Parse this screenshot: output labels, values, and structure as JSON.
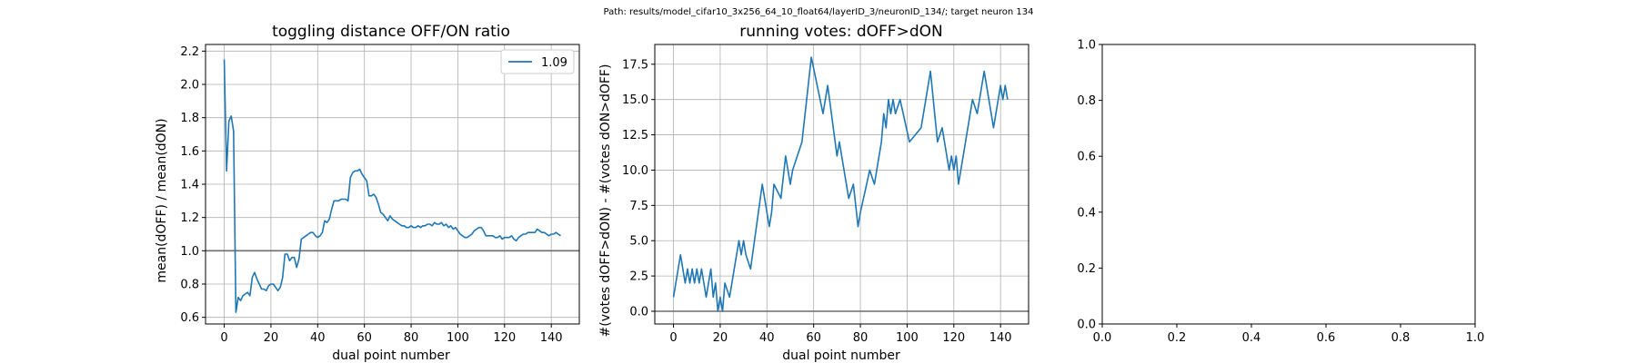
{
  "suptitle": "Path: results/model_cifar10_3x256_64_10_float64/layerID_3/neuronID_134/; target neuron 134",
  "chart_data": [
    {
      "type": "line",
      "title": "toggling distance OFF/ON ratio",
      "xlabel": "dual point number",
      "ylabel": "mean(dOFF) / mean(dON)",
      "xlim": [
        -8,
        152
      ],
      "ylim": [
        0.56,
        2.24
      ],
      "xticks": [
        0,
        20,
        40,
        60,
        80,
        100,
        120,
        140
      ],
      "yticks": [
        0.6,
        0.8,
        1.0,
        1.2,
        1.4,
        1.6,
        1.8,
        2.0,
        2.2
      ],
      "ytick_labels": [
        "0.6",
        "0.8",
        "1.0",
        "1.2",
        "1.4",
        "1.6",
        "1.8",
        "2.0",
        "2.2"
      ],
      "grid": true,
      "legend": "top-right",
      "reference_line": 1.0,
      "series": [
        {
          "name": "1.09",
          "color": "#1f77b4",
          "x": [
            0,
            1,
            2,
            3,
            4,
            5,
            6,
            7,
            8,
            9,
            10,
            11,
            12,
            13,
            14,
            15,
            16,
            17,
            18,
            19,
            20,
            21,
            22,
            23,
            24,
            25,
            26,
            27,
            28,
            29,
            30,
            31,
            32,
            33,
            34,
            35,
            36,
            37,
            38,
            39,
            40,
            41,
            42,
            43,
            44,
            45,
            46,
            47,
            48,
            49,
            50,
            51,
            52,
            53,
            54,
            55,
            56,
            57,
            58,
            59,
            60,
            61,
            62,
            63,
            64,
            65,
            66,
            67,
            68,
            69,
            70,
            71,
            72,
            73,
            74,
            75,
            76,
            77,
            78,
            79,
            80,
            81,
            82,
            83,
            84,
            85,
            86,
            87,
            88,
            89,
            90,
            91,
            92,
            93,
            94,
            95,
            96,
            97,
            98,
            99,
            100,
            101,
            102,
            103,
            104,
            105,
            106,
            107,
            108,
            109,
            110,
            111,
            112,
            113,
            114,
            115,
            116,
            117,
            118,
            119,
            120,
            121,
            122,
            123,
            124,
            125,
            126,
            127,
            128,
            129,
            130,
            131,
            132,
            133,
            134,
            135,
            136,
            137,
            138,
            139,
            140,
            141,
            142,
            143,
            144
          ],
          "y": [
            2.15,
            1.48,
            1.78,
            1.81,
            1.72,
            0.63,
            0.72,
            0.7,
            0.73,
            0.74,
            0.75,
            0.73,
            0.84,
            0.87,
            0.83,
            0.8,
            0.77,
            0.77,
            0.76,
            0.79,
            0.8,
            0.8,
            0.78,
            0.76,
            0.78,
            0.84,
            0.98,
            0.98,
            0.94,
            0.96,
            0.96,
            0.9,
            0.95,
            1.07,
            1.08,
            1.09,
            1.1,
            1.11,
            1.11,
            1.09,
            1.08,
            1.09,
            1.11,
            1.18,
            1.17,
            1.19,
            1.25,
            1.3,
            1.3,
            1.3,
            1.31,
            1.31,
            1.31,
            1.3,
            1.44,
            1.47,
            1.48,
            1.48,
            1.49,
            1.46,
            1.44,
            1.42,
            1.33,
            1.33,
            1.34,
            1.32,
            1.28,
            1.23,
            1.22,
            1.2,
            1.18,
            1.21,
            1.19,
            1.18,
            1.17,
            1.16,
            1.15,
            1.15,
            1.14,
            1.14,
            1.15,
            1.14,
            1.14,
            1.15,
            1.14,
            1.15,
            1.15,
            1.16,
            1.16,
            1.15,
            1.17,
            1.16,
            1.16,
            1.17,
            1.15,
            1.16,
            1.14,
            1.15,
            1.13,
            1.14,
            1.12,
            1.1,
            1.09,
            1.08,
            1.08,
            1.09,
            1.1,
            1.12,
            1.13,
            1.14,
            1.14,
            1.12,
            1.09,
            1.09,
            1.09,
            1.09,
            1.08,
            1.08,
            1.09,
            1.07,
            1.08,
            1.08,
            1.08,
            1.09,
            1.07,
            1.06,
            1.08,
            1.09,
            1.1,
            1.1,
            1.11,
            1.11,
            1.11,
            1.11,
            1.13,
            1.12,
            1.11,
            1.11,
            1.1,
            1.09,
            1.1,
            1.1,
            1.11,
            1.1,
            1.09
          ]
        }
      ]
    },
    {
      "type": "line",
      "title": "running votes: dOFF>dON",
      "xlabel": "dual point number",
      "ylabel": "#(votes dOFF>dON) - #(votes dON>dOFF)",
      "xlim": [
        -8,
        152
      ],
      "ylim": [
        -0.9,
        18.9
      ],
      "xticks": [
        0,
        20,
        40,
        60,
        80,
        100,
        120,
        140
      ],
      "yticks": [
        0.0,
        2.5,
        5.0,
        7.5,
        10.0,
        12.5,
        15.0,
        17.5
      ],
      "ytick_labels": [
        "0.0",
        "2.5",
        "5.0",
        "7.5",
        "10.0",
        "12.5",
        "15.0",
        "17.5"
      ],
      "grid": true,
      "reference_line": 0,
      "series": [
        {
          "color": "#1f77b4",
          "x": [
            0,
            3,
            5,
            6,
            7,
            8,
            9,
            10,
            11,
            12,
            14,
            16,
            17,
            18,
            19,
            20,
            21,
            22,
            24,
            28,
            29,
            30,
            31,
            33,
            38,
            41,
            42,
            43,
            46,
            48,
            50,
            51,
            53,
            55,
            59,
            64,
            66,
            70,
            71,
            73,
            75,
            77,
            79,
            80,
            84,
            86,
            88,
            89,
            90,
            91,
            92,
            93,
            94,
            95,
            97,
            101,
            106,
            110,
            113,
            115,
            116,
            118,
            119,
            120,
            121,
            122,
            124,
            128,
            130,
            131,
            133,
            137,
            140,
            141,
            142,
            143
          ],
          "y": [
            1,
            4,
            2,
            3,
            2,
            3,
            2,
            3,
            2,
            3,
            1,
            3,
            1,
            2,
            0,
            1,
            0,
            2,
            1,
            5,
            4,
            5,
            4,
            3,
            9,
            6,
            7,
            9,
            8,
            11,
            9,
            10,
            11,
            12,
            18,
            14,
            16,
            11,
            12,
            10,
            8,
            9,
            6,
            7,
            10,
            9,
            11,
            12,
            14,
            13,
            15,
            14,
            15,
            14,
            15,
            12,
            13,
            17,
            12,
            13,
            12,
            10,
            11,
            10,
            11,
            9,
            11,
            15,
            14,
            15,
            17,
            13,
            16,
            15,
            16,
            15
          ]
        }
      ]
    },
    {
      "type": "line",
      "title": "",
      "xlabel": "",
      "ylabel": "",
      "xlim": [
        0,
        1
      ],
      "ylim": [
        0,
        1
      ],
      "xticks": [
        0.0,
        0.2,
        0.4,
        0.6,
        0.8,
        1.0
      ],
      "xtick_labels": [
        "0.0",
        "0.2",
        "0.4",
        "0.6",
        "0.8",
        "1.0"
      ],
      "yticks": [
        0.0,
        0.2,
        0.4,
        0.6,
        0.8,
        1.0
      ],
      "ytick_labels": [
        "0.0",
        "0.2",
        "0.4",
        "0.6",
        "0.8",
        "1.0"
      ],
      "grid": false,
      "series": []
    }
  ]
}
